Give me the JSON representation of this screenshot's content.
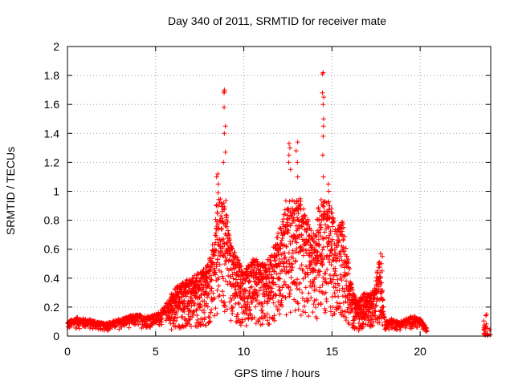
{
  "chart_data": {
    "type": "scatter",
    "title": "Day 340 of 2011, SRMTID for receiver mate",
    "xlabel": "GPS time / hours",
    "ylabel": "SRMTID / TECUs",
    "xlim": [
      0,
      24
    ],
    "ylim": [
      0,
      2
    ],
    "x_ticks": [
      0,
      5,
      10,
      15,
      20
    ],
    "y_ticks": [
      0,
      0.2,
      0.4,
      0.6,
      0.8,
      1,
      1.2,
      1.4,
      1.6,
      1.8,
      2
    ],
    "x_tick_labels": [
      "0",
      "5",
      "10",
      "15",
      "20"
    ],
    "y_tick_labels": [
      "0",
      "0.2",
      "0.4",
      "0.6",
      "0.8",
      "1",
      "1.2",
      "1.4",
      "1.6",
      "1.8",
      "2"
    ],
    "grid": true,
    "marker": "+",
    "marker_color": "#ff0000",
    "envelope": {
      "x": [
        0,
        0.5,
        1,
        1.5,
        2,
        2.5,
        3,
        3.5,
        4,
        4.5,
        5,
        5.5,
        6,
        6.5,
        7,
        7.5,
        8,
        8.3,
        8.6,
        8.8,
        9,
        9.3,
        9.6,
        10,
        10.3,
        10.6,
        11,
        11.5,
        12,
        12.3,
        12.6,
        12.9,
        13.2,
        13.5,
        13.8,
        14.1,
        14.4,
        14.6,
        14.8,
        15,
        15.3,
        15.6,
        15.9,
        16.2,
        16.5,
        16.8,
        17.1,
        17.4,
        17.7,
        18,
        18.4,
        18.8,
        19.2,
        19.6,
        20,
        20.4
      ],
      "y": [
        0.1,
        0.13,
        0.12,
        0.11,
        0.09,
        0.1,
        0.12,
        0.14,
        0.15,
        0.14,
        0.15,
        0.2,
        0.32,
        0.38,
        0.4,
        0.45,
        0.5,
        0.7,
        1.1,
        1.7,
        0.9,
        0.65,
        0.55,
        0.45,
        0.5,
        0.55,
        0.5,
        0.55,
        0.75,
        0.88,
        1.2,
        1.33,
        0.95,
        0.85,
        0.75,
        0.7,
        1.3,
        1.8,
        1.5,
        0.9,
        0.75,
        0.8,
        0.55,
        0.3,
        0.25,
        0.3,
        0.3,
        0.32,
        0.56,
        0.1,
        0.12,
        0.1,
        0.12,
        0.14,
        0.12,
        0.05
      ]
    },
    "peak_clusters": [
      {
        "x": 8.9,
        "values": [
          1.7,
          1.69,
          1.68,
          1.58,
          1.45,
          1.4,
          1.27,
          1.2
        ]
      },
      {
        "x": 8.5,
        "values": [
          1.12,
          1.1,
          1.05,
          0.99,
          0.9
        ]
      },
      {
        "x": 12.6,
        "values": [
          1.33,
          1.3,
          1.25,
          1.2,
          1.15
        ]
      },
      {
        "x": 13.0,
        "values": [
          1.34,
          1.28,
          1.2,
          1.1
        ]
      },
      {
        "x": 14.5,
        "values": [
          1.82,
          1.81,
          1.68,
          1.65,
          1.6,
          1.5,
          1.45,
          1.38,
          1.25,
          1.1
        ]
      },
      {
        "x": 14.8,
        "values": [
          1.05,
          1.0,
          0.92,
          0.85
        ]
      },
      {
        "x": 17.8,
        "values": [
          0.57,
          0.55,
          0.5,
          0.45
        ]
      }
    ],
    "late_segment": {
      "x_range": [
        23.6,
        24.0
      ],
      "max": 0.2
    }
  }
}
